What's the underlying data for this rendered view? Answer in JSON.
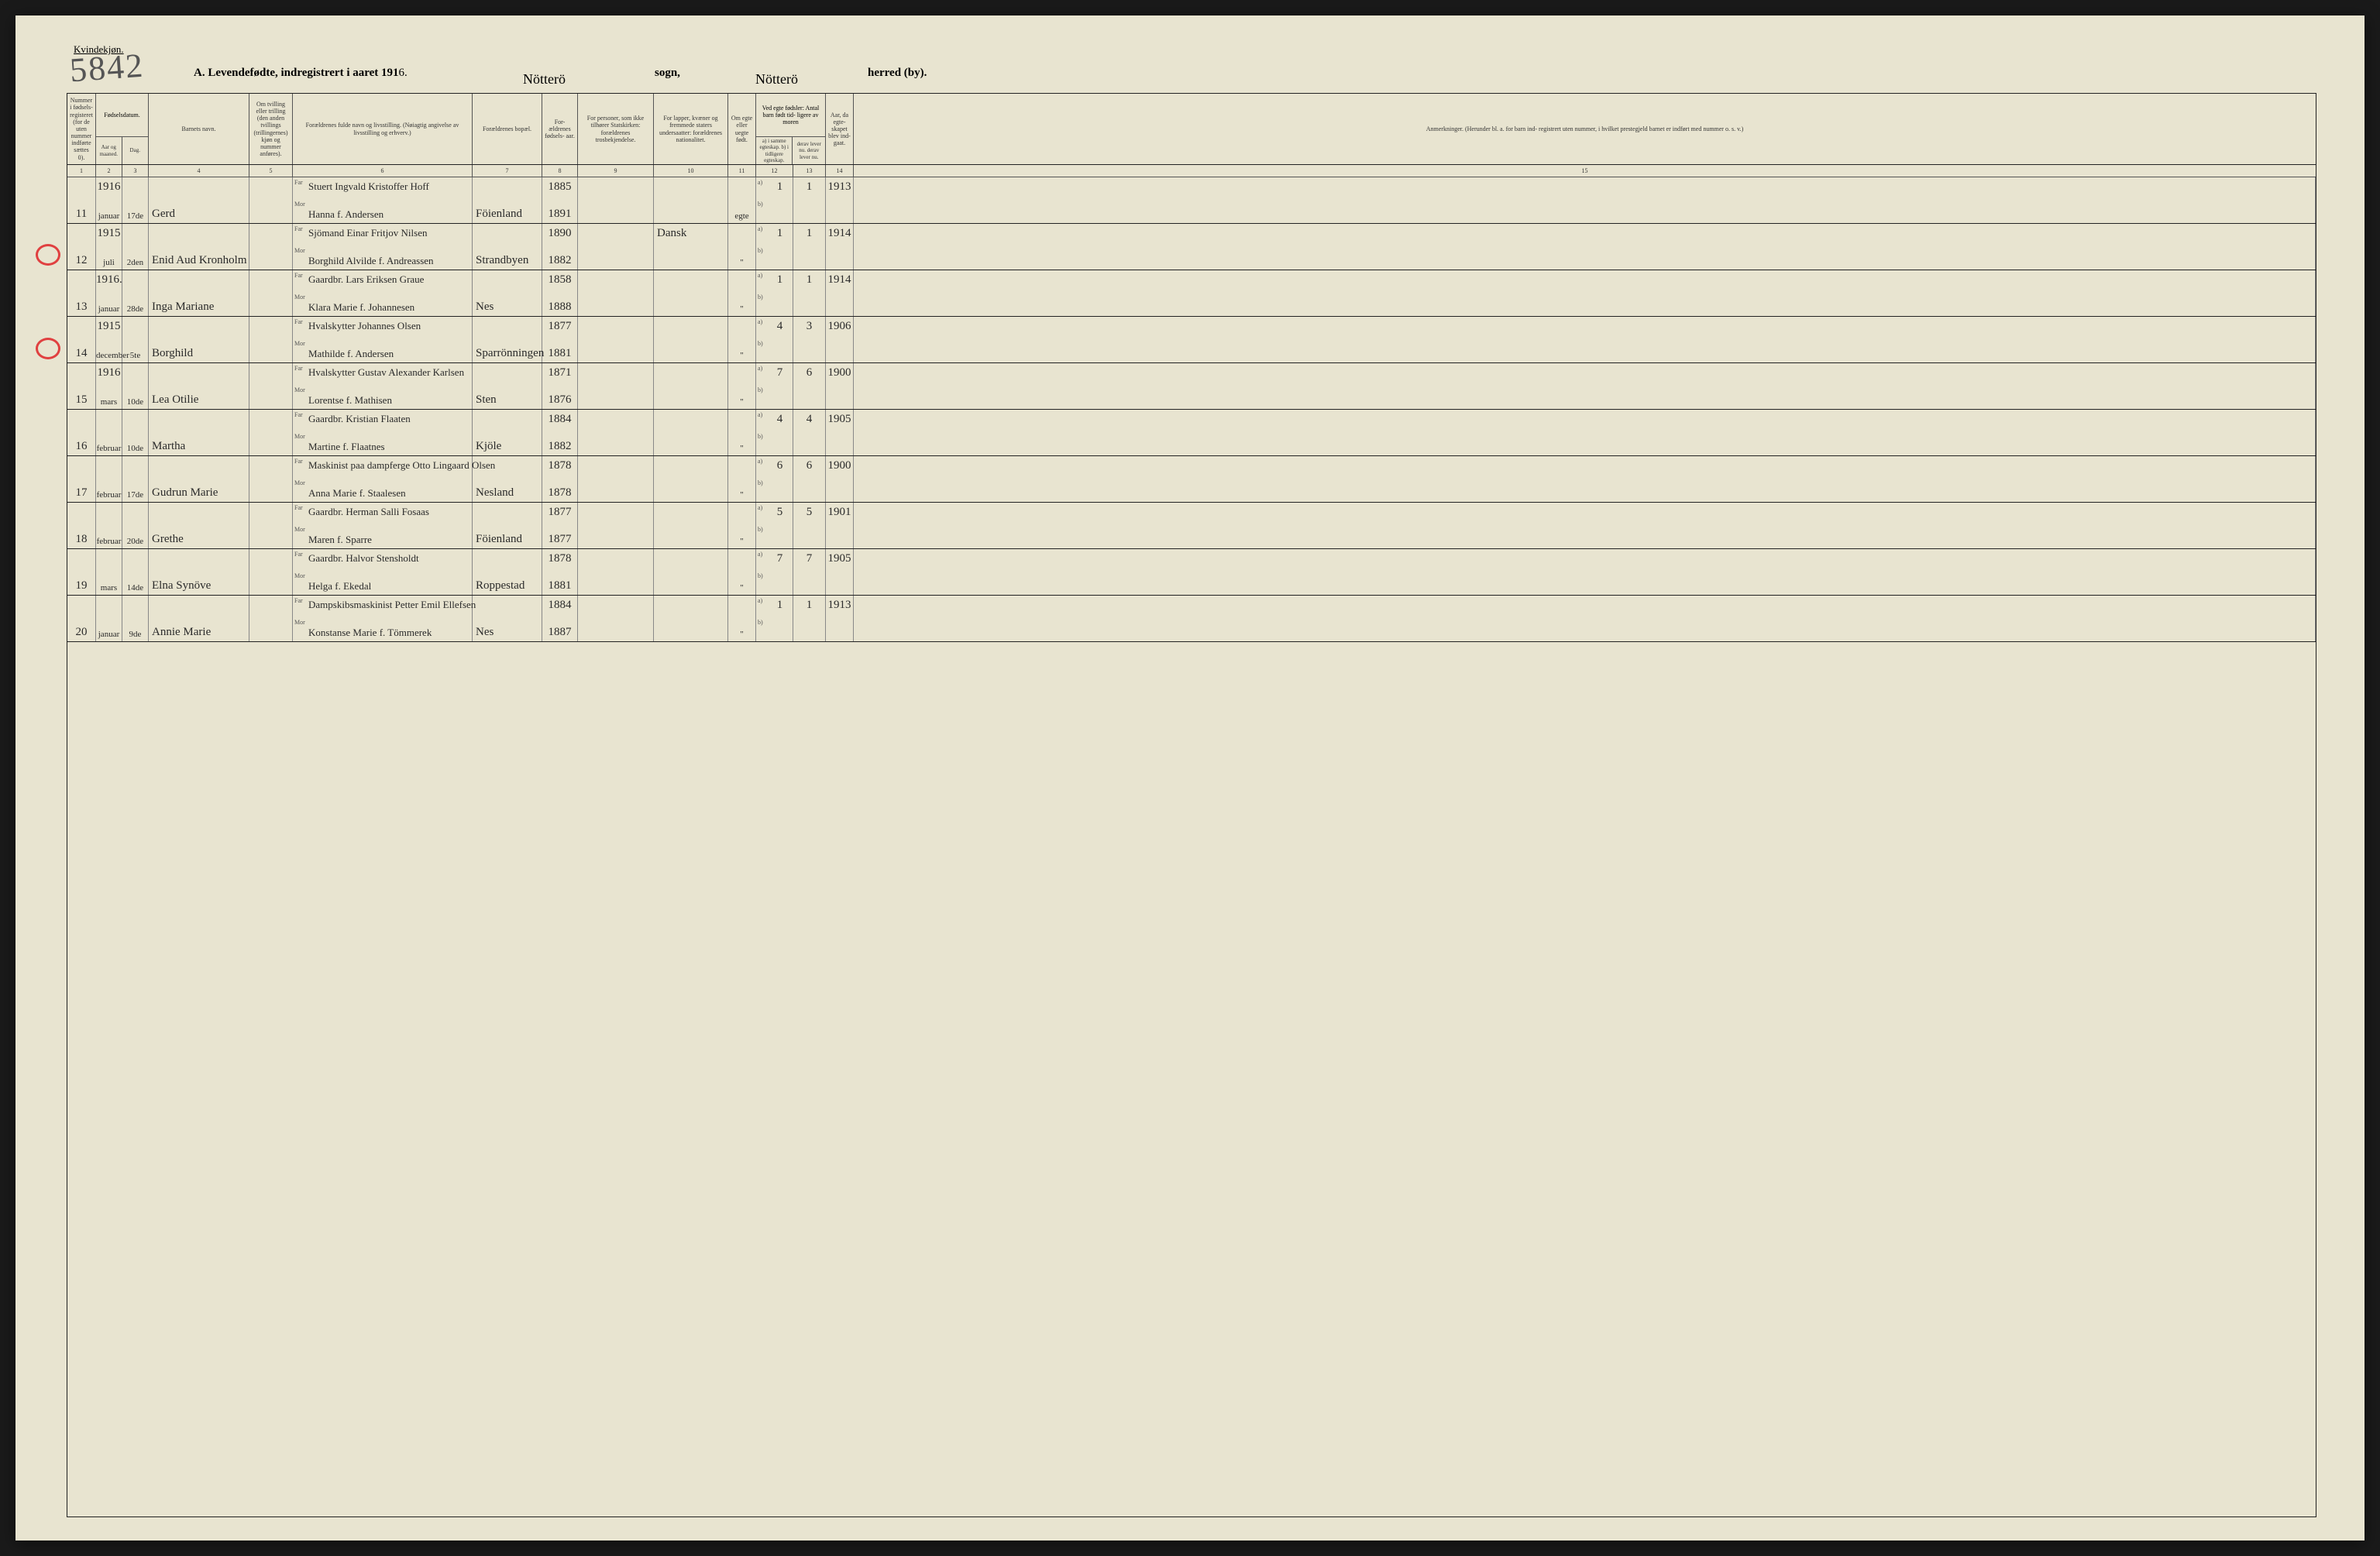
{
  "page": {
    "genderLabel": "Kvindekjøn.",
    "stampNumber": "5842",
    "titleA": "A. Levendefødte, indregistrert i aaret 191",
    "yearSuffix": "6.",
    "sognLabel": "sogn,",
    "sognValue": "Nötterö",
    "herredLabel": "herred (by).",
    "herredValue": "Nötterö"
  },
  "headers": {
    "c1": "Nummer i fødsels- registeret (for de uten nummer indførte sættes 0).",
    "c2top": "Fødselsdatum.",
    "c2a": "Aar og maaned.",
    "c2b": "Dag.",
    "c3": "Barnets navn.",
    "c4": "Om tvilling eller trilling (den anden tvillings (trillingernes) kjøn og nummer anføres).",
    "c5": "Forældrenes fulde navn og livsstilling. (Nøiagtig angivelse av livsstilling og erhverv.)",
    "c6": "Forældrenes bopæl.",
    "c7": "For- ældrenes fødsels- aar.",
    "c8": "For personer, som ikke tilhører Statskirken: forældrenes trosbekjendelse.",
    "c9": "For lapper, kvæner og fremmede staters undersaatter: forældrenes nationalitet.",
    "c10": "Om egte eller uegte født.",
    "c11top": "Ved egte fødsler: Antal barn født tid- ligere av moren",
    "c11a": "a) i samme egteskap. b) i tidligere egteskap.",
    "c11b": "derav lever nu. derav lever nu.",
    "c12": "Aar, da egte- skapet blev ind- gaat.",
    "c13": "Anmerkninger. (Herunder bl. a. for barn ind- registrert uten nummer, i hvilket prestegjeld barnet er indført med nummer o. s. v.)"
  },
  "colnums": [
    "1",
    "2",
    "3",
    "4",
    "5",
    "6",
    "7",
    "8",
    "9",
    "10",
    "11",
    "12",
    "13",
    "14",
    "15"
  ],
  "records": [
    {
      "num": "11",
      "yearTop": "1916",
      "monthBot": "januar",
      "day": "17de",
      "name": "Gerd",
      "far": "Stuert Ingvald Kristoffer Hoff",
      "mor": "Hanna f. Andersen",
      "bopal": "Föienland",
      "farYear": "1885",
      "morYear": "1891",
      "tros": "",
      "nat": "",
      "egte": "egte",
      "a": "1",
      "aLev": "1",
      "marYear": "1913"
    },
    {
      "num": "12",
      "yearTop": "1915",
      "monthBot": "juli",
      "day": "2den",
      "name": "Enid Aud Kronholm",
      "far": "Sjömand Einar Fritjov Nilsen",
      "mor": "Borghild Alvilde f. Andreassen",
      "bopal": "Strandbyen",
      "farYear": "1890",
      "morYear": "1882",
      "tros": "",
      "nat": "Dansk",
      "egte": "\"",
      "a": "1",
      "aLev": "1",
      "marYear": "1914"
    },
    {
      "num": "13",
      "yearTop": "1916.",
      "monthBot": "januar",
      "day": "28de",
      "name": "Inga Mariane",
      "far": "Gaardbr. Lars Eriksen Graue",
      "mor": "Klara Marie f. Johannesen",
      "bopal": "Nes",
      "farYear": "1858",
      "morYear": "1888",
      "tros": "",
      "nat": "",
      "egte": "\"",
      "a": "1",
      "aLev": "1",
      "marYear": "1914"
    },
    {
      "num": "14",
      "yearTop": "1915",
      "monthBot": "december",
      "day": "5te",
      "name": "Borghild",
      "far": "Hvalskytter Johannes Olsen",
      "mor": "Mathilde f. Andersen",
      "bopal": "Sparrönningen",
      "farYear": "1877",
      "morYear": "1881",
      "tros": "",
      "nat": "",
      "egte": "\"",
      "a": "4",
      "aLev": "3",
      "marYear": "1906"
    },
    {
      "num": "15",
      "yearTop": "1916",
      "monthBot": "mars",
      "day": "10de",
      "name": "Lea Otilie",
      "far": "Hvalskytter Gustav Alexander Karlsen",
      "mor": "Lorentse f. Mathisen",
      "bopal": "Sten",
      "farYear": "1871",
      "morYear": "1876",
      "tros": "",
      "nat": "",
      "egte": "\"",
      "a": "7",
      "aLev": "6",
      "marYear": "1900"
    },
    {
      "num": "16",
      "yearTop": "",
      "monthBot": "februar",
      "day": "10de",
      "name": "Martha",
      "far": "Gaardbr. Kristian Flaaten",
      "mor": "Martine f. Flaatnes",
      "bopal": "Kjöle",
      "farYear": "1884",
      "morYear": "1882",
      "tros": "",
      "nat": "",
      "egte": "\"",
      "a": "4",
      "aLev": "4",
      "marYear": "1905"
    },
    {
      "num": "17",
      "yearTop": "",
      "monthBot": "februar",
      "day": "17de",
      "name": "Gudrun Marie",
      "far": "Maskinist paa dampferge Otto Lingaard Olsen",
      "mor": "Anna Marie f. Staalesen",
      "bopal": "Nesland",
      "farYear": "1878",
      "morYear": "1878",
      "tros": "",
      "nat": "",
      "egte": "\"",
      "a": "6",
      "aLev": "6",
      "marYear": "1900"
    },
    {
      "num": "18",
      "yearTop": "",
      "monthBot": "februar",
      "day": "20de",
      "name": "Grethe",
      "far": "Gaardbr. Herman Salli Fosaas",
      "mor": "Maren f. Sparre",
      "bopal": "Föienland",
      "farYear": "1877",
      "morYear": "1877",
      "tros": "",
      "nat": "",
      "egte": "\"",
      "a": "5",
      "aLev": "5",
      "marYear": "1901"
    },
    {
      "num": "19",
      "yearTop": "",
      "monthBot": "mars",
      "day": "14de",
      "name": "Elna Synöve",
      "far": "Gaardbr. Halvor Stensholdt",
      "mor": "Helga f. Ekedal",
      "bopal": "Roppestad",
      "farYear": "1878",
      "morYear": "1881",
      "tros": "",
      "nat": "",
      "egte": "\"",
      "a": "7",
      "aLev": "7",
      "marYear": "1905"
    },
    {
      "num": "20",
      "yearTop": "",
      "monthBot": "januar",
      "day": "9de",
      "name": "Annie Marie",
      "far": "Dampskibsmaskinist Petter Emil Ellefsen",
      "mor": "Konstanse Marie f. Tömmerek",
      "bopal": "Nes",
      "farYear": "1884",
      "morYear": "1887",
      "tros": "",
      "nat": "",
      "egte": "\"",
      "a": "1",
      "aLev": "1",
      "marYear": "1913"
    }
  ],
  "style": {
    "pageBg": "#e8e4d0",
    "lineColor": "#222222",
    "subLineColor": "#888888",
    "inkColor": "#2a2a2a",
    "redCircle": "#e04040",
    "headerFontSize": 8,
    "handwritingFontSize": 15,
    "titleFontSize": 15
  }
}
